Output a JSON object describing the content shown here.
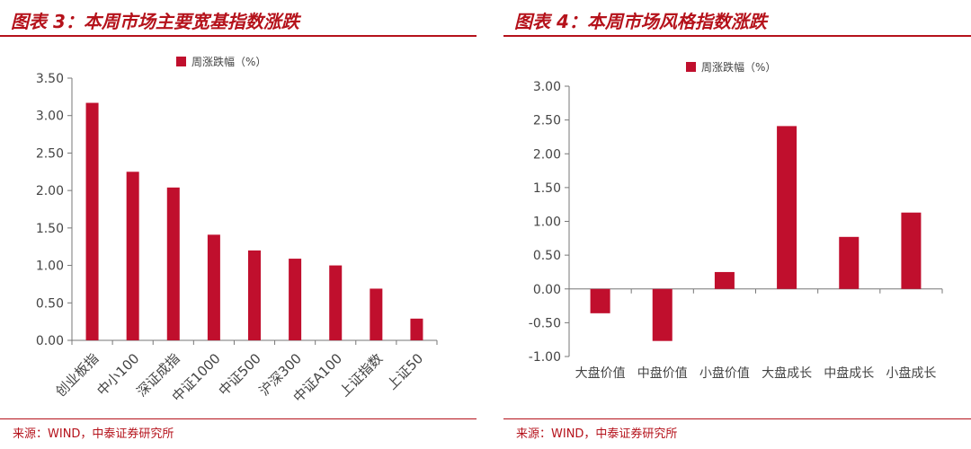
{
  "colors": {
    "accent": "#b5121b",
    "bar": "#c00f2d",
    "axis": "#777777",
    "text": "#444444"
  },
  "left_panel": {
    "title": "图表 3：本周市场主要宽基指数涨跌",
    "source": "来源：WIND，中泰证券研究所"
  },
  "right_panel": {
    "title": "图表 4：本周市场风格指数涨跌",
    "source": "来源：WIND，中泰证券研究所"
  },
  "chart_data": [
    {
      "type": "bar",
      "categories": [
        "创业板指",
        "中小100",
        "深证成指",
        "中证1000",
        "中证500",
        "沪深300",
        "中证A100",
        "上证指数",
        "上证50"
      ],
      "series": [
        {
          "name": "周涨跌幅（%）",
          "values": [
            3.17,
            2.25,
            2.04,
            1.41,
            1.2,
            1.09,
            1.0,
            0.69,
            0.29
          ]
        }
      ],
      "yticks": [
        "3.50",
        "3.00",
        "2.50",
        "2.00",
        "1.50",
        "1.00",
        "0.50",
        "0.00"
      ],
      "ylim": [
        0,
        3.5
      ],
      "legend_position": "top",
      "grid": false
    },
    {
      "type": "bar",
      "categories": [
        "大盘价值",
        "中盘价值",
        "小盘价值",
        "大盘成长",
        "中盘成长",
        "小盘成长"
      ],
      "series": [
        {
          "name": "周涨跌幅（%）",
          "values": [
            -0.36,
            -0.77,
            0.25,
            2.41,
            0.77,
            1.13
          ]
        }
      ],
      "yticks": [
        "3.00",
        "2.50",
        "2.00",
        "1.50",
        "1.00",
        "0.50",
        "0.00",
        "-0.50",
        "-1.00"
      ],
      "ylim": [
        -1.0,
        3.0
      ],
      "legend_position": "top",
      "grid": false
    }
  ]
}
